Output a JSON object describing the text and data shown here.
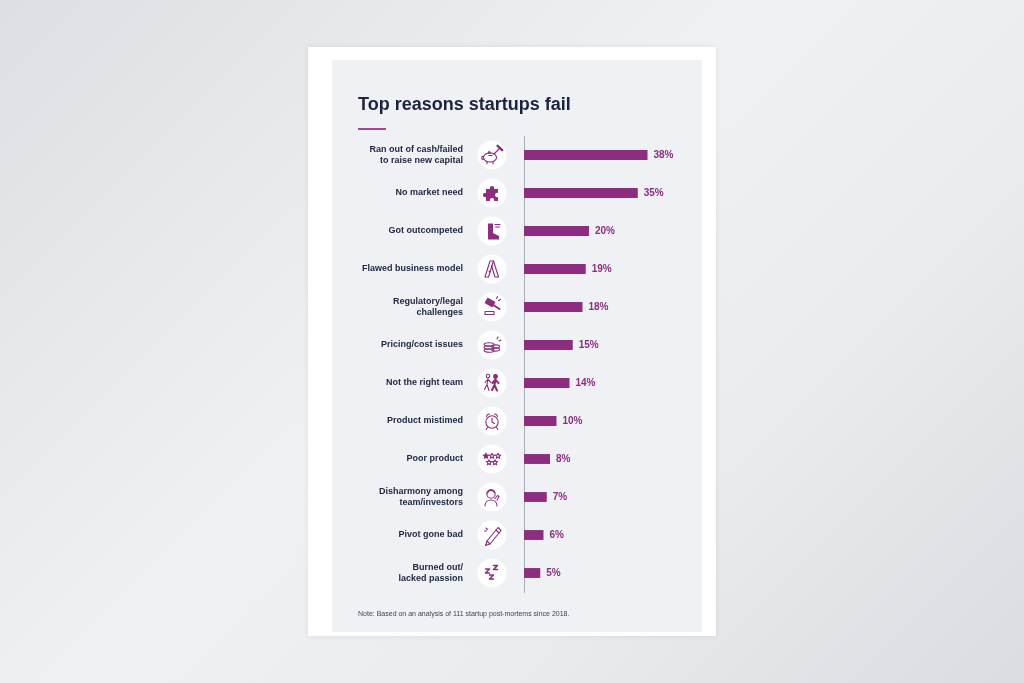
{
  "chart_data": {
    "type": "bar",
    "orientation": "horizontal",
    "title": "Top reasons startups fail",
    "categories": [
      "Ran out of cash/failed\nto raise new capital",
      "No market need",
      "Got outcompeted",
      "Flawed business model",
      "Regulatory/legal\nchallenges",
      "Pricing/cost issues",
      "Not the right team",
      "Product mistimed",
      "Poor product",
      "Disharmony among\nteam/investors",
      "Pivot gone bad",
      "Burned out/\nlacked passion"
    ],
    "values": [
      38,
      35,
      20,
      19,
      18,
      15,
      14,
      10,
      8,
      7,
      6,
      5
    ],
    "value_labels": [
      "38%",
      "35%",
      "20%",
      "19%",
      "18%",
      "15%",
      "14%",
      "10%",
      "8%",
      "7%",
      "6%",
      "5%"
    ],
    "color": "#8c2d7f",
    "tick_labels": "y",
    "annotations": [
      "Note: Based on an analysis of 111 startup post-mortems since 2018."
    ]
  }
}
